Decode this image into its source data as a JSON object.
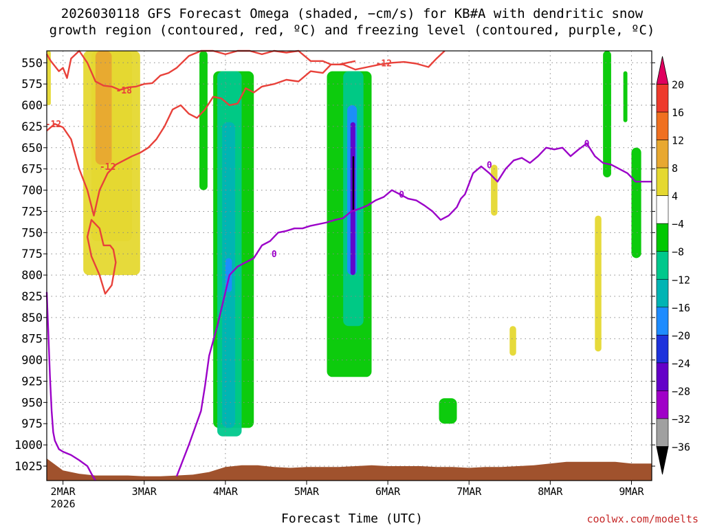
{
  "title_line1": "2026030118 GFS Forecast Omega (shaded, −cm/s) for KB#A with dendritic snow",
  "title_line2": "growth region (contoured, red, ºC) and freezing level (contoured, purple, ºC)",
  "credit": "coolwx.com/modelts",
  "colors": {
    "snow_growth": "#e8413a",
    "freezing_level": "#9b00c8",
    "ground": "#a0522d",
    "grid": "#888888"
  },
  "chart_data": {
    "type": "heatmap",
    "xlabel": "Forecast Time (UTC)",
    "ylabel": "",
    "x_ticks": [
      "2MAR",
      "3MAR",
      "4MAR",
      "5MAR",
      "6MAR",
      "7MAR",
      "8MAR",
      "9MAR"
    ],
    "x_tick_sub": "2026",
    "y_ticks": [
      550,
      575,
      600,
      625,
      650,
      675,
      700,
      725,
      750,
      775,
      800,
      825,
      850,
      875,
      900,
      925,
      950,
      975,
      1000,
      1025
    ],
    "x_range": [
      1.8,
      9.25
    ],
    "y_range": [
      536,
      1042
    ],
    "y_inverted": true,
    "colorbar": {
      "labels": [
        "20",
        "16",
        "12",
        "8",
        "4",
        "−4",
        "−8",
        "−12",
        "−16",
        "−20",
        "−24",
        "−28",
        "−32",
        "−36"
      ],
      "colors": [
        "#e0005f",
        "#ee3a2c",
        "#f07020",
        "#e8a830",
        "#e5d830",
        "#ffffff",
        "#00c800",
        "#00c88c",
        "#00b4b4",
        "#1e8cff",
        "#1e32dc",
        "#6400c8",
        "#a000c8",
        "#a0a0a0",
        "#000000"
      ]
    },
    "shaded_regions": [
      {
        "level": 4,
        "x": [
          2.25,
          2.95
        ],
        "p": [
          536,
          800
        ]
      },
      {
        "level": 4,
        "x": [
          2.35,
          2.85
        ],
        "p": [
          536,
          760
        ]
      },
      {
        "level": 8,
        "x": [
          2.4,
          2.6
        ],
        "p": [
          536,
          670
        ]
      },
      {
        "level": 4,
        "x": [
          1.8,
          1.85
        ],
        "p": [
          536,
          600
        ]
      },
      {
        "level": -4,
        "x": [
          3.68,
          3.78
        ],
        "p": [
          536,
          700
        ]
      },
      {
        "level": -4,
        "x": [
          3.85,
          4.35
        ],
        "p": [
          560,
          980
        ]
      },
      {
        "level": -8,
        "x": [
          3.9,
          4.2
        ],
        "p": [
          560,
          990
        ]
      },
      {
        "level": -12,
        "x": [
          3.96,
          4.12
        ],
        "p": [
          620,
          980
        ]
      },
      {
        "level": -16,
        "x": [
          4.0,
          4.08
        ],
        "p": [
          780,
          820
        ]
      },
      {
        "level": -4,
        "x": [
          5.25,
          5.8
        ],
        "p": [
          560,
          920
        ]
      },
      {
        "level": -8,
        "x": [
          5.45,
          5.7
        ],
        "p": [
          560,
          860
        ]
      },
      {
        "level": -16,
        "x": [
          5.5,
          5.62
        ],
        "p": [
          600,
          800
        ]
      },
      {
        "level": -24,
        "x": [
          5.54,
          5.6
        ],
        "p": [
          620,
          800
        ]
      },
      {
        "level": -36,
        "x": [
          5.565,
          5.585
        ],
        "p": [
          660,
          725
        ]
      },
      {
        "level": -4,
        "x": [
          8.65,
          8.75
        ],
        "p": [
          536,
          685
        ]
      },
      {
        "level": -4,
        "x": [
          8.9,
          8.95
        ],
        "p": [
          560,
          620
        ]
      },
      {
        "level": -4,
        "x": [
          9.0,
          9.12
        ],
        "p": [
          650,
          780
        ]
      },
      {
        "level": 4,
        "x": [
          7.27,
          7.35
        ],
        "p": [
          670,
          730
        ]
      },
      {
        "level": 4,
        "x": [
          8.55,
          8.63
        ],
        "p": [
          730,
          890
        ]
      },
      {
        "level": 4,
        "x": [
          7.5,
          7.58
        ],
        "p": [
          860,
          895
        ]
      },
      {
        "level": -4,
        "x": [
          6.63,
          6.85
        ],
        "p": [
          945,
          975
        ]
      }
    ],
    "series": [
      {
        "name": "",
        "role": "snow-growth-upper",
        "x": [
          1.8,
          1.85,
          1.95,
          2.0,
          2.05,
          2.1,
          2.2,
          2.3,
          2.4,
          2.5,
          2.6,
          2.7,
          2.8,
          2.9,
          3.0,
          3.1,
          3.2,
          3.3,
          3.4,
          3.55,
          3.7,
          3.85,
          4.0,
          4.15,
          4.3,
          4.45,
          4.6,
          4.75,
          4.9,
          5.05,
          5.2,
          5.3,
          5.45,
          5.6,
          5.75,
          5.9,
          6.05,
          6.2,
          6.35,
          6.5,
          6.6,
          6.7
        ],
        "y": [
          540,
          548,
          560,
          556,
          568,
          545,
          536,
          550,
          572,
          577,
          578,
          582,
          579,
          578,
          575,
          574,
          565,
          562,
          556,
          542,
          536,
          536,
          540,
          536,
          536,
          540,
          536,
          538,
          536,
          548,
          548,
          552,
          552,
          558,
          555,
          552,
          550,
          549,
          551,
          555,
          545,
          536
        ]
      },
      {
        "name": "",
        "role": "snow-growth-lower",
        "x": [
          1.8,
          1.9,
          2.0,
          2.1,
          2.2,
          2.3,
          2.38,
          2.45,
          2.55,
          2.65,
          2.75,
          2.85,
          2.95,
          3.05,
          3.15,
          3.25,
          3.35,
          3.45,
          3.55,
          3.65,
          3.75,
          3.85,
          3.95,
          4.05,
          4.15,
          4.25,
          4.35,
          4.45,
          4.6,
          4.75,
          4.9,
          5.05,
          5.2,
          5.3,
          5.4,
          5.5,
          5.6
        ],
        "y": [
          630,
          622,
          626,
          640,
          675,
          700,
          730,
          700,
          680,
          670,
          665,
          660,
          656,
          650,
          640,
          625,
          605,
          600,
          610,
          615,
          605,
          590,
          592,
          600,
          598,
          580,
          585,
          578,
          575,
          570,
          572,
          560,
          562,
          552,
          552,
          550,
          548
        ]
      },
      {
        "name": "",
        "role": "snow-growth-pocket",
        "x": [
          2.5,
          2.45,
          2.35,
          2.3,
          2.35,
          2.45,
          2.52,
          2.6,
          2.65,
          2.62,
          2.58,
          2.5
        ],
        "y": [
          765,
          745,
          735,
          755,
          778,
          800,
          822,
          812,
          785,
          770,
          765,
          765
        ]
      },
      {
        "name": "",
        "role": "freezing-level",
        "x": [
          3.4,
          3.55,
          3.7,
          3.75,
          3.8,
          3.9,
          3.95,
          4.05,
          4.15,
          4.25,
          4.35,
          4.45,
          4.55,
          4.65,
          4.75,
          4.85,
          4.95,
          5.05,
          5.15,
          5.25,
          5.35,
          5.45,
          5.55,
          5.65,
          5.75,
          5.85,
          5.95,
          6.05,
          6.15,
          6.25,
          6.35,
          6.45,
          6.55,
          6.65,
          6.75,
          6.85,
          6.9,
          6.95,
          7.05,
          7.15,
          7.25,
          7.35,
          7.45,
          7.55,
          7.65,
          7.75,
          7.85,
          7.95,
          8.05,
          8.15,
          8.25,
          8.35,
          8.45,
          8.55,
          8.65,
          8.75,
          8.85,
          8.95,
          9.05,
          9.15,
          9.25
        ],
        "y": [
          1037,
          1000,
          960,
          930,
          895,
          860,
          840,
          800,
          790,
          785,
          780,
          765,
          760,
          750,
          748,
          745,
          745,
          742,
          740,
          738,
          735,
          733,
          725,
          722,
          718,
          712,
          708,
          700,
          705,
          710,
          712,
          718,
          725,
          735,
          730,
          720,
          710,
          705,
          680,
          672,
          680,
          690,
          675,
          665,
          662,
          668,
          660,
          650,
          652,
          650,
          660,
          652,
          645,
          660,
          668,
          670,
          675,
          680,
          690,
          690,
          690
        ]
      },
      {
        "name": "",
        "role": "freezing-level-left",
        "x": [
          1.8,
          1.82,
          1.84,
          1.86,
          1.88,
          1.9,
          1.95,
          2.0,
          2.1,
          2.2,
          2.3,
          2.35,
          2.4
        ],
        "y": [
          820,
          870,
          920,
          960,
          985,
          995,
          1005,
          1008,
          1012,
          1018,
          1025,
          1034,
          1042
        ]
      },
      {
        "name": "",
        "role": "ground-top",
        "x": [
          1.8,
          2.0,
          2.2,
          2.4,
          2.6,
          2.8,
          3.0,
          3.2,
          3.4,
          3.6,
          3.8,
          4.0,
          4.2,
          4.4,
          4.6,
          4.8,
          5.0,
          5.2,
          5.4,
          5.6,
          5.8,
          6.0,
          6.2,
          6.4,
          6.6,
          6.8,
          7.0,
          7.2,
          7.4,
          7.6,
          7.8,
          8.0,
          8.2,
          8.4,
          8.6,
          8.8,
          9.0,
          9.25
        ],
        "y": [
          1016,
          1030,
          1034,
          1036,
          1036,
          1036,
          1037,
          1037,
          1036,
          1035,
          1032,
          1026,
          1024,
          1024,
          1026,
          1027,
          1026,
          1026,
          1026,
          1025,
          1024,
          1025,
          1025,
          1025,
          1026,
          1026,
          1027,
          1026,
          1026,
          1025,
          1024,
          1022,
          1020,
          1020,
          1020,
          1020,
          1022,
          1022
        ]
      }
    ],
    "contour_labels": [
      {
        "text": "-12",
        "x": 1.88,
        "y": 622,
        "series": "snow-growth-lower"
      },
      {
        "text": "-12",
        "x": 2.55,
        "y": 672,
        "series": "snow-growth-lower"
      },
      {
        "text": "-18",
        "x": 2.75,
        "y": 582,
        "series": "snow-growth-upper"
      },
      {
        "text": "-12",
        "x": 5.95,
        "y": 550,
        "series": "snow-growth-upper"
      },
      {
        "text": "0",
        "x": 4.6,
        "y": 775,
        "series": "freezing-level"
      },
      {
        "text": "0",
        "x": 6.17,
        "y": 705,
        "series": "freezing-level"
      },
      {
        "text": "0",
        "x": 7.25,
        "y": 670,
        "series": "freezing-level"
      },
      {
        "text": "0",
        "x": 8.45,
        "y": 645,
        "series": "freezing-level"
      }
    ]
  }
}
